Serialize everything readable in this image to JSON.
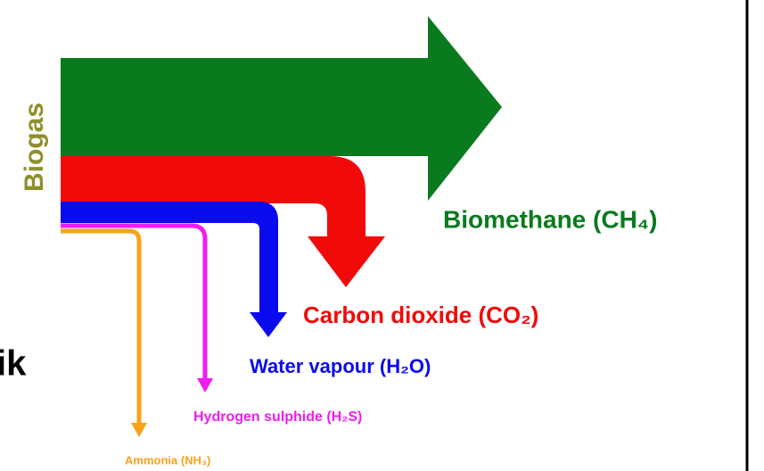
{
  "source": "Biogas",
  "outputs": [
    {
      "label": "Biomethane (CH₄)"
    },
    {
      "label": "Carbon dioxide (CO₂)"
    },
    {
      "label": "Water vapour (H₂O)"
    },
    {
      "label": "Hydrogen sulphide (H₂S)"
    },
    {
      "label": "Ammonia (NH₃)"
    }
  ],
  "side_text": "ik"
}
